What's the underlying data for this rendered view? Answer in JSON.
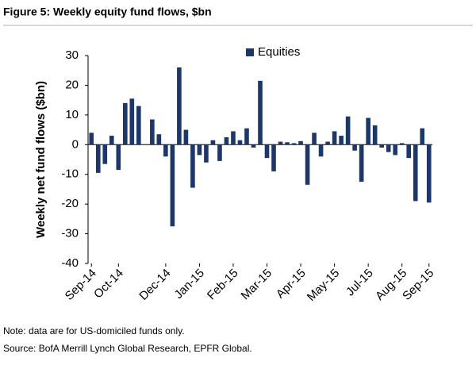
{
  "chart_data": {
    "type": "bar",
    "title": "Figure 5: Weekly equity fund flows, $bn",
    "ylabel": "Weekly net fund flows ($bn)",
    "notes": [
      "Note: data are for US-domiciled funds only.",
      "Source: BofA Merrill Lynch Global Research, EPFR Global."
    ],
    "legend_position": "top",
    "categories": [
      "Sep-14",
      null,
      null,
      null,
      "Oct-14",
      null,
      null,
      null,
      null,
      null,
      null,
      "Dec-14",
      null,
      null,
      null,
      null,
      "Jan-15",
      null,
      null,
      null,
      null,
      "Feb-15",
      null,
      null,
      null,
      null,
      "Mar-15",
      null,
      null,
      null,
      null,
      "Apr-15",
      null,
      null,
      null,
      null,
      "May-15",
      null,
      null,
      null,
      null,
      "Jul-15",
      null,
      null,
      null,
      null,
      "Aug-15",
      null,
      null,
      null,
      "Sep-15"
    ],
    "series": [
      {
        "name": "Equities",
        "color": "#1c3768",
        "values": [
          4,
          -9.5,
          -6.5,
          3,
          -8.5,
          14,
          15.5,
          13,
          0,
          8.5,
          3.5,
          -4,
          -27.5,
          26,
          5,
          -14.5,
          -3.5,
          -6,
          1.5,
          -5.5,
          2.5,
          4.5,
          1.5,
          5.5,
          -1,
          21.5,
          -4.5,
          -9,
          1,
          0.8,
          0.5,
          1.2,
          -13.5,
          4,
          -4,
          1,
          4.5,
          3,
          9.5,
          -2,
          -12.5,
          9,
          6.5,
          -1,
          -2.5,
          -3.5,
          0.5,
          -4.5,
          -19,
          5.5,
          -19.5
        ]
      }
    ],
    "ylim": [
      -40,
      30
    ],
    "yticks": [
      -40,
      -30,
      -20,
      -10,
      0,
      10,
      20,
      30
    ],
    "grid": false
  }
}
